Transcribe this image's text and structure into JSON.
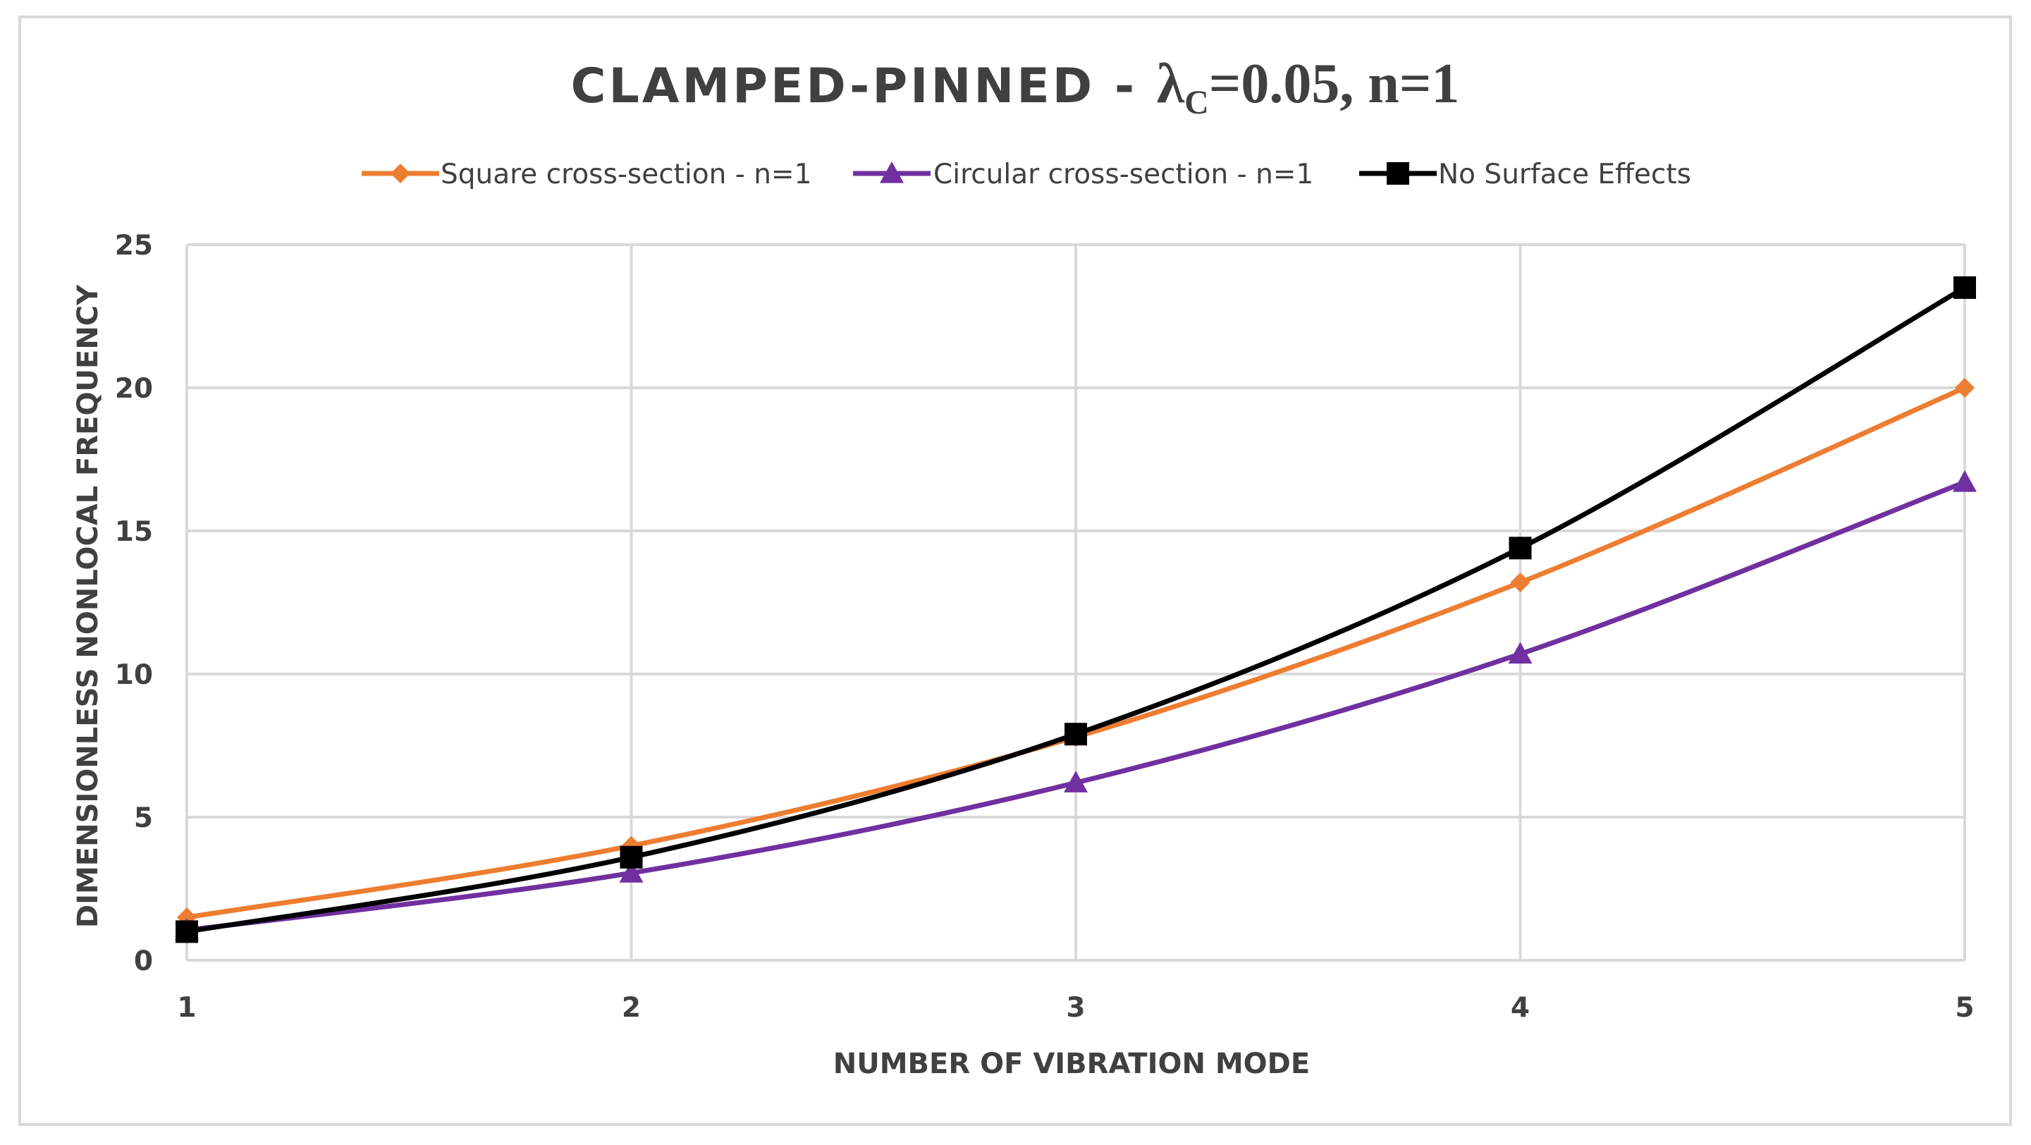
{
  "chart_data": {
    "type": "line",
    "title": {
      "prefix": "CLAMPED-PINNED  - ",
      "lambda": "λ",
      "lambda_sub": "C",
      "suffix": "=0.05,  n=1"
    },
    "xlabel": "NUMBER OF VIBRATION MODE",
    "ylabel": "DIMENSIONLESS NONLOCAL FREQUENCY",
    "x": [
      1,
      2,
      3,
      4,
      5
    ],
    "x_tick_labels": [
      "1",
      "2",
      "3",
      "4",
      "5"
    ],
    "ylim": [
      0,
      25
    ],
    "y_ticks": [
      0,
      5,
      10,
      15,
      20,
      25
    ],
    "y_tick_labels": [
      "0",
      "5",
      "10",
      "15",
      "20",
      "25"
    ],
    "grid": true,
    "legend_position": "top",
    "smooth": true,
    "series": [
      {
        "name": "Square cross-section - n=1",
        "color": "#ed7d31",
        "marker": "diamond",
        "values": [
          1.5,
          4.0,
          7.8,
          13.2,
          20.0
        ]
      },
      {
        "name": "Circular cross-section - n=1",
        "color": "#7030a0",
        "marker": "triangle",
        "values": [
          1.05,
          3.05,
          6.2,
          10.7,
          16.7
        ]
      },
      {
        "name": "No Surface Effects",
        "color": "#000000",
        "marker": "square",
        "values": [
          1.0,
          3.6,
          7.9,
          14.4,
          23.5
        ]
      }
    ]
  }
}
